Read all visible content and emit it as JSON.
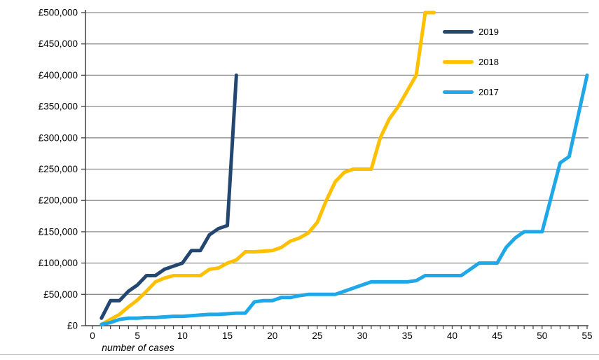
{
  "chart_data": {
    "type": "line",
    "title": "",
    "xlabel": "number of cases",
    "ylabel": "",
    "xlim": [
      0,
      55
    ],
    "ylim": [
      0,
      500000
    ],
    "grid": "horizontal-only",
    "legend_position": "top-right-inside",
    "x_ticks_major": [
      0,
      5,
      10,
      15,
      20,
      25,
      30,
      35,
      40,
      45,
      50,
      55
    ],
    "x_tick_labels": [
      "0",
      "5",
      "10",
      "15",
      "20",
      "25",
      "30",
      "35",
      "40",
      "45",
      "50",
      "55"
    ],
    "x_minor_tick_step": 1,
    "y_ticks": [
      0,
      50000,
      100000,
      150000,
      200000,
      250000,
      300000,
      350000,
      400000,
      450000,
      500000
    ],
    "y_tick_labels": [
      "£0",
      "£50,000",
      "£100,000",
      "£150,000",
      "£200,000",
      "£250,000",
      "£300,000",
      "£350,000",
      "£400,000",
      "£450,000",
      "£500,000"
    ],
    "x_start": 1,
    "x_meaning": "case index (cumulative value in £ per number of cases)",
    "series": [
      {
        "name": "2019",
        "color": "#234770",
        "values": [
          12000,
          40000,
          40000,
          55000,
          65000,
          80000,
          80000,
          90000,
          95000,
          100000,
          120000,
          120000,
          145000,
          155000,
          160000,
          400000
        ]
      },
      {
        "name": "2018",
        "color": "#FFC000",
        "values": [
          2000,
          10000,
          18000,
          30000,
          41000,
          55000,
          70000,
          76000,
          80000,
          80000,
          80000,
          80000,
          90000,
          92000,
          100000,
          105000,
          118000,
          118000,
          119000,
          120000,
          125000,
          135000,
          140000,
          148000,
          165000,
          200000,
          230000,
          245000,
          250000,
          250000,
          250000,
          300000,
          330000,
          350000,
          375000,
          400000,
          500000,
          500000
        ]
      },
      {
        "name": "2017",
        "color": "#1FA8E8",
        "values": [
          2000,
          5000,
          10000,
          12000,
          12000,
          13000,
          13000,
          14000,
          15000,
          15000,
          16000,
          17000,
          18000,
          18000,
          19000,
          20000,
          20000,
          38000,
          40000,
          40000,
          45000,
          45000,
          48000,
          50000,
          50000,
          50000,
          50000,
          55000,
          60000,
          65000,
          70000,
          70000,
          70000,
          70000,
          70000,
          72000,
          80000,
          80000,
          80000,
          80000,
          80000,
          90000,
          100000,
          100000,
          100000,
          125000,
          140000,
          150000,
          150000,
          150000,
          205000,
          260000,
          270000,
          335000,
          400000
        ]
      }
    ],
    "style": {
      "gridline_color": "#8C8C8C",
      "axis_color": "#404040",
      "tick_color": "#808080",
      "label_color": "#000000",
      "line_width": 5
    }
  }
}
